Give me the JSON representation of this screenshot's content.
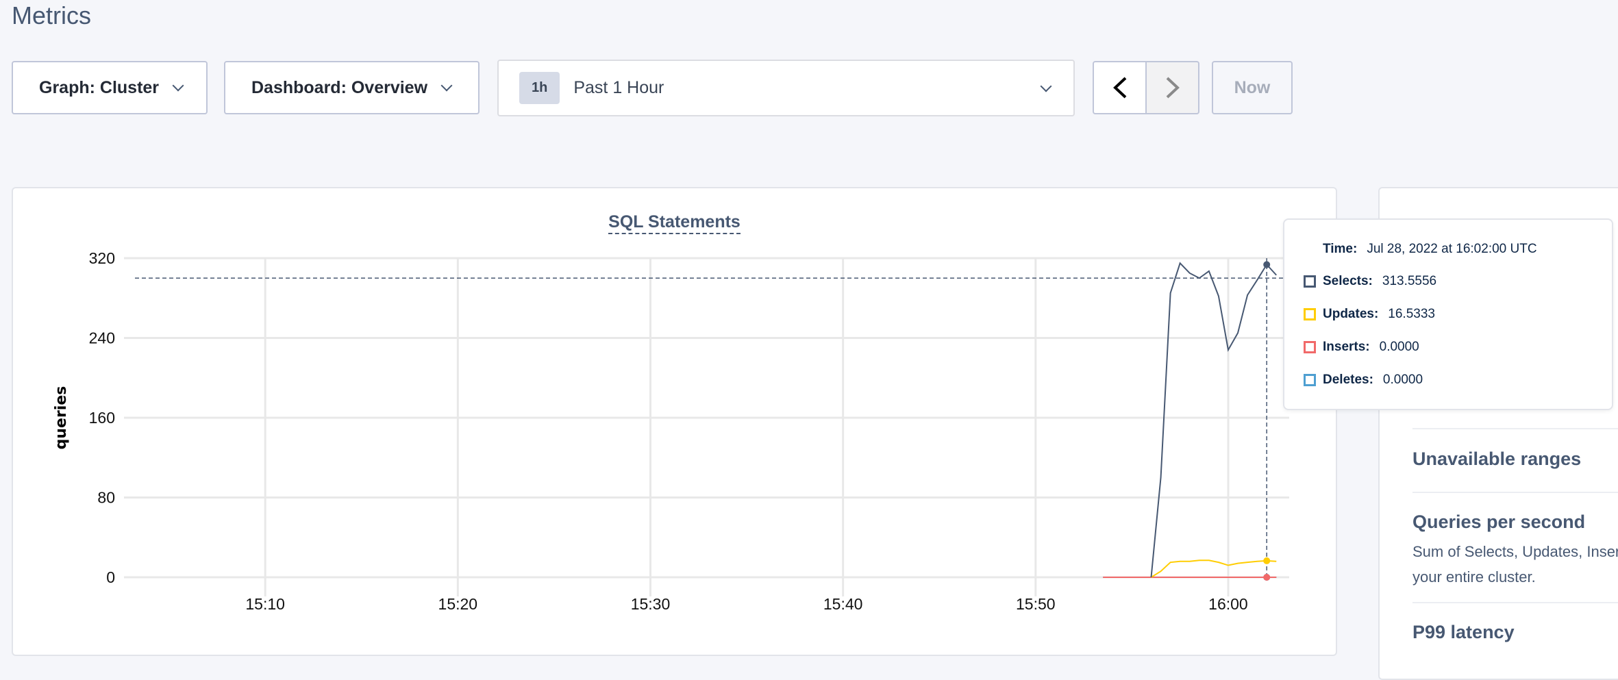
{
  "header": {
    "title": "Metrics"
  },
  "toolbar": {
    "graph_label": "Graph: Cluster",
    "dashboard_label": "Dashboard: Overview",
    "time_badge": "1h",
    "time_label": "Past 1 Hour",
    "prev_icon": "chevron-left-icon",
    "next_icon": "chevron-right-icon",
    "now_label": "Now"
  },
  "chart_data": {
    "type": "line",
    "title": "SQL Statements",
    "ylabel": "queries",
    "xlabel": "",
    "ylim": [
      0,
      320
    ],
    "xlim": [
      "15:02:40",
      "16:03:10"
    ],
    "yticks": [
      "0",
      "80",
      "160",
      "240",
      "320"
    ],
    "xticks": [
      "15:10",
      "15:20",
      "15:30",
      "15:40",
      "15:50",
      "16:00"
    ],
    "grid": true,
    "series": [
      {
        "name": "Selects",
        "color": "#475872",
        "x": [
          "15:56:00",
          "15:56:30",
          "15:57:00",
          "15:57:30",
          "15:58:00",
          "15:58:30",
          "15:59:00",
          "15:59:30",
          "16:00:00",
          "16:00:30",
          "16:01:00",
          "16:01:30",
          "16:02:00",
          "16:02:30"
        ],
        "y": [
          0,
          100,
          285,
          315,
          305,
          300,
          307,
          282,
          228,
          245,
          283,
          298,
          313.5556,
          303
        ]
      },
      {
        "name": "Updates",
        "color": "#ffcd02",
        "x": [
          "15:56:00",
          "15:56:30",
          "15:57:00",
          "15:57:30",
          "15:58:00",
          "15:58:30",
          "15:59:00",
          "15:59:30",
          "16:00:00",
          "16:00:30",
          "16:01:00",
          "16:01:30",
          "16:02:00",
          "16:02:30"
        ],
        "y": [
          0,
          6,
          15,
          16,
          16,
          17,
          17,
          15,
          12,
          14,
          15,
          16,
          16.5333,
          16
        ]
      },
      {
        "name": "Inserts",
        "color": "#f16969",
        "x": [
          "15:53:30",
          "16:02:30"
        ],
        "y": [
          0,
          0
        ]
      },
      {
        "name": "Deletes",
        "color": "#4e9fd1",
        "x": [
          "15:53:30",
          "16:02:30"
        ],
        "y": [
          0,
          0
        ]
      }
    ]
  },
  "tooltip": {
    "time_label": "Time:",
    "time_value": "Jul 28, 2022 at 16:02:00 UTC",
    "rows": [
      {
        "label": "Selects:",
        "value": "313.5556",
        "color": "#475872"
      },
      {
        "label": "Updates:",
        "value": "16.5333",
        "color": "#ffcd02"
      },
      {
        "label": "Inserts:",
        "value": "0.0000",
        "color": "#f16969"
      },
      {
        "label": "Deletes:",
        "value": "0.0000",
        "color": "#4e9fd1"
      }
    ]
  },
  "right_panel": {
    "items": [
      {
        "title": "Unavailable ranges"
      },
      {
        "title": "Queries per second",
        "description_line1": "Sum of Selects, Updates, Inser",
        "description_line2": "your entire cluster."
      },
      {
        "title": "P99 latency"
      }
    ]
  }
}
